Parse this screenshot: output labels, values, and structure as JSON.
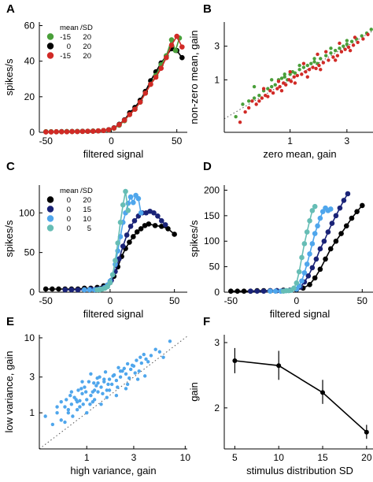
{
  "colors": {
    "green": "#4a9f3a",
    "black": "#000000",
    "red": "#d12a26",
    "navy": "#1a2377",
    "blue": "#4b42c0",
    "lightblue": "#4fa6ec",
    "teal": "#66bdb5",
    "dotted": "#555555"
  },
  "chart_data": [
    {
      "id": "A",
      "panel_letter": "A",
      "type": "line",
      "xlabel": "filtered signal",
      "ylabel": "spikes/s",
      "xlim": [
        -55,
        58
      ],
      "ylim": [
        0,
        62
      ],
      "xticks": [
        -50,
        0,
        50
      ],
      "yticks": [
        0,
        20,
        40,
        60
      ],
      "legend": {
        "placement": "top-left",
        "header_mean": "mean",
        "header_sd": "/SD",
        "rows": [
          {
            "mean": "-15",
            "sd": "20",
            "color_key": "green"
          },
          {
            "mean": "0",
            "sd": "20",
            "color_key": "black"
          },
          {
            "mean": "-15",
            "sd": "20",
            "color_key": "red"
          }
        ]
      },
      "series": [
        {
          "color_key": "black",
          "x": [
            -50,
            -46,
            -42,
            -38,
            -34,
            -30,
            -26,
            -22,
            -18,
            -14,
            -10,
            -6,
            -2,
            2,
            6,
            10,
            14,
            18,
            22,
            26,
            30,
            34,
            38,
            42,
            46,
            50,
            54
          ],
          "y": [
            0.3,
            0.3,
            0.3,
            0.4,
            0.4,
            0.5,
            0.5,
            0.6,
            0.6,
            0.7,
            0.8,
            1,
            1.5,
            2.5,
            4.5,
            7,
            11,
            14,
            18,
            23,
            29,
            34,
            39,
            43,
            47,
            46,
            42
          ]
        },
        {
          "color_key": "green",
          "x": [
            -50,
            -46,
            -42,
            -38,
            -34,
            -30,
            -26,
            -22,
            -18,
            -14,
            -10,
            -6,
            -2,
            2,
            6,
            10,
            14,
            18,
            22,
            26,
            30,
            34,
            38,
            42,
            46,
            49,
            52
          ],
          "y": [
            0.3,
            0.3,
            0.3,
            0.3,
            0.4,
            0.4,
            0.5,
            0.5,
            0.6,
            0.7,
            0.8,
            1,
            1.3,
            2.3,
            4,
            6.5,
            10,
            13,
            17,
            22,
            27,
            32,
            38,
            43,
            52,
            46,
            53
          ]
        },
        {
          "color_key": "red",
          "x": [
            -50,
            -46,
            -42,
            -38,
            -34,
            -30,
            -26,
            -22,
            -18,
            -14,
            -10,
            -6,
            -2,
            2,
            6,
            10,
            14,
            18,
            22,
            26,
            30,
            34,
            38,
            42,
            46,
            50,
            54
          ],
          "y": [
            0.2,
            0.2,
            0.3,
            0.3,
            0.3,
            0.4,
            0.4,
            0.5,
            0.6,
            0.6,
            0.8,
            1,
            1.4,
            2.4,
            4.3,
            6.8,
            10,
            13,
            17,
            22,
            27,
            31,
            36,
            42,
            49,
            54,
            48
          ]
        }
      ]
    },
    {
      "id": "B",
      "panel_letter": "B",
      "type": "scatter",
      "xlabel": "zero mean, gain",
      "ylabel": "non-zero mean, gain",
      "xscale": "log",
      "yscale": "log",
      "xlim": [
        0.28,
        5.2
      ],
      "ylim": [
        0.18,
        6.6
      ],
      "xticks": [
        1,
        3
      ],
      "yticks": [
        1,
        3
      ],
      "identity_line": true,
      "series": [
        {
          "color_key": "green",
          "x": [
            0.35,
            0.4,
            0.45,
            0.5,
            0.55,
            0.6,
            0.65,
            0.7,
            0.75,
            0.8,
            0.85,
            0.9,
            0.95,
            1.0,
            1.05,
            1.1,
            1.2,
            1.3,
            1.4,
            1.5,
            1.6,
            1.7,
            1.8,
            2.0,
            2.2,
            2.4,
            2.6,
            2.8,
            3.0,
            3.3,
            3.6,
            4.0,
            4.4,
            4.8,
            0.5,
            0.7,
            0.9,
            1.2,
            1.6,
            2.2,
            3.0
          ],
          "y": [
            0.3,
            0.45,
            0.5,
            0.55,
            0.6,
            0.7,
            0.75,
            0.8,
            0.85,
            1.0,
            1.05,
            1.1,
            1.0,
            1.2,
            1.3,
            1.25,
            1.4,
            1.5,
            1.6,
            1.7,
            1.8,
            1.7,
            2.0,
            2.2,
            2.4,
            2.6,
            2.8,
            3.0,
            3.2,
            3.5,
            3.8,
            4.2,
            4.6,
            5.2,
            0.8,
            1.0,
            1.2,
            1.6,
            2.0,
            2.8,
            3.6
          ]
        },
        {
          "color_key": "red",
          "x": [
            0.38,
            0.42,
            0.48,
            0.52,
            0.58,
            0.62,
            0.68,
            0.72,
            0.78,
            0.82,
            0.88,
            0.92,
            0.98,
            1.02,
            1.08,
            1.15,
            1.25,
            1.35,
            1.45,
            1.55,
            1.65,
            1.75,
            1.9,
            2.1,
            2.3,
            2.5,
            2.7,
            2.9,
            3.1,
            3.4,
            3.7,
            4.1,
            4.5,
            0.45,
            0.55,
            0.65,
            0.85,
            1.1,
            1.4,
            1.8,
            2.4,
            3.2,
            0.6,
            0.8,
            1.0,
            1.3,
            1.7,
            2.0,
            2.6,
            3.5
          ],
          "y": [
            0.25,
            0.35,
            0.5,
            0.45,
            0.55,
            0.6,
            0.7,
            0.65,
            0.75,
            0.8,
            0.9,
            0.85,
            1.0,
            0.95,
            1.1,
            1.15,
            1.2,
            1.3,
            1.4,
            1.5,
            1.45,
            1.6,
            1.75,
            1.9,
            2.1,
            2.2,
            2.5,
            2.7,
            2.9,
            3.1,
            3.4,
            3.8,
            4.4,
            0.4,
            0.5,
            0.58,
            0.7,
            0.9,
            1.1,
            1.4,
            1.9,
            2.6,
            0.75,
            0.95,
            1.3,
            1.7,
            2.3,
            2.5,
            3.3,
            4.0
          ]
        }
      ]
    },
    {
      "id": "C",
      "panel_letter": "C",
      "type": "line",
      "xlabel": "filtered signal",
      "ylabel": "spikes/s",
      "xlim": [
        -55,
        60
      ],
      "ylim": [
        0,
        135
      ],
      "xticks": [
        -50,
        0,
        50
      ],
      "yticks": [
        0,
        50,
        100
      ],
      "legend": {
        "placement": "top-left",
        "header_mean": "mean",
        "header_sd": "/SD",
        "rows": [
          {
            "mean": "0",
            "sd": "20",
            "color_key": "black"
          },
          {
            "mean": "0",
            "sd": "15",
            "color_key": "navy"
          },
          {
            "mean": "0",
            "sd": "10",
            "color_key": "lightblue"
          },
          {
            "mean": "0",
            "sd": "5",
            "color_key": "teal"
          }
        ]
      },
      "series": [
        {
          "color_key": "black",
          "x": [
            -50,
            -45,
            -40,
            -35,
            -30,
            -25,
            -20,
            -15,
            -10,
            -5,
            0,
            3,
            6,
            9,
            12,
            15,
            18,
            21,
            24,
            27,
            30,
            35,
            40,
            45,
            50
          ],
          "y": [
            4,
            4,
            4,
            4,
            4,
            4,
            5,
            5,
            6,
            8,
            12,
            20,
            32,
            45,
            55,
            63,
            70,
            76,
            80,
            84,
            86,
            84,
            83,
            80,
            73
          ]
        },
        {
          "color_key": "navy",
          "x": [
            -35,
            -30,
            -25,
            -20,
            -15,
            -10,
            -5,
            -2,
            1,
            4,
            7,
            10,
            13,
            16,
            19,
            22,
            25,
            28,
            31,
            34,
            37,
            40,
            43
          ],
          "y": [
            3,
            3,
            3,
            3,
            4,
            4,
            6,
            9,
            15,
            26,
            42,
            58,
            72,
            83,
            90,
            96,
            100,
            100,
            102,
            100,
            96,
            90,
            85
          ]
        },
        {
          "color_key": "lightblue",
          "x": [
            -20,
            -16,
            -12,
            -8,
            -4,
            -2,
            0,
            2,
            4,
            6,
            8,
            10,
            12,
            14,
            16,
            18,
            20,
            22,
            24
          ],
          "y": [
            3,
            3,
            3,
            4,
            6,
            9,
            14,
            22,
            35,
            52,
            70,
            88,
            100,
            112,
            120,
            113,
            122,
            118,
            100
          ]
        },
        {
          "color_key": "teal",
          "x": [
            -10,
            -8,
            -6,
            -4,
            -2,
            0,
            2,
            4,
            6,
            8,
            10,
            12,
            14
          ],
          "y": [
            3,
            3,
            4,
            5,
            7,
            12,
            22,
            40,
            62,
            88,
            110,
            127,
            103
          ]
        }
      ]
    },
    {
      "id": "D",
      "panel_letter": "D",
      "type": "line",
      "xlabel": "filtered signal",
      "ylabel": "spikes/s",
      "xlim": [
        -55,
        60
      ],
      "ylim": [
        0,
        210
      ],
      "xticks": [
        -50,
        0,
        50
      ],
      "yticks": [
        0,
        50,
        100,
        150,
        200
      ],
      "series": [
        {
          "color_key": "black",
          "x": [
            -50,
            -45,
            -40,
            -35,
            -30,
            -25,
            -20,
            -15,
            -10,
            -5,
            0,
            5,
            10,
            14,
            18,
            22,
            26,
            30,
            34,
            38,
            42,
            46,
            50
          ],
          "y": [
            2,
            2,
            2,
            2,
            3,
            3,
            3,
            3,
            4,
            4,
            5,
            8,
            15,
            28,
            45,
            65,
            85,
            100,
            115,
            130,
            145,
            158,
            170
          ]
        },
        {
          "color_key": "navy",
          "x": [
            -35,
            -30,
            -25,
            -20,
            -15,
            -10,
            -5,
            0,
            3,
            6,
            9,
            12,
            15,
            18,
            21,
            24,
            27,
            30,
            33,
            36,
            39
          ],
          "y": [
            2,
            2,
            2,
            3,
            3,
            3,
            4,
            6,
            10,
            20,
            32,
            48,
            65,
            85,
            100,
            118,
            135,
            150,
            165,
            180,
            193
          ]
        },
        {
          "color_key": "lightblue",
          "x": [
            -20,
            -16,
            -12,
            -8,
            -4,
            0,
            2,
            4,
            6,
            8,
            10,
            12,
            14,
            16,
            18,
            20,
            22,
            24,
            26
          ],
          "y": [
            2,
            2,
            2,
            3,
            4,
            6,
            12,
            22,
            38,
            55,
            75,
            95,
            115,
            130,
            145,
            158,
            165,
            160,
            163
          ]
        },
        {
          "color_key": "teal",
          "x": [
            -10,
            -8,
            -6,
            -4,
            -2,
            0,
            2,
            4,
            6,
            8,
            10,
            12,
            14
          ],
          "y": [
            2,
            3,
            3,
            4,
            8,
            18,
            40,
            68,
            95,
            118,
            140,
            160,
            168
          ]
        }
      ]
    },
    {
      "id": "E",
      "panel_letter": "E",
      "type": "scatter",
      "xlabel": "high variance, gain",
      "ylabel": "low variance, gain",
      "xscale": "log",
      "yscale": "log",
      "xlim": [
        0.33,
        10.5
      ],
      "ylim": [
        0.33,
        11
      ],
      "xticks": [
        1,
        3,
        10
      ],
      "yticks": [
        1,
        3,
        10
      ],
      "identity_line": true,
      "series": [
        {
          "color_key": "lightblue",
          "x": [
            0.38,
            0.45,
            0.5,
            0.55,
            0.6,
            0.62,
            0.65,
            0.7,
            0.72,
            0.75,
            0.8,
            0.82,
            0.85,
            0.9,
            0.92,
            0.95,
            1.0,
            1.05,
            1.1,
            1.15,
            1.2,
            1.25,
            1.3,
            1.35,
            1.4,
            1.5,
            1.55,
            1.6,
            1.7,
            1.8,
            1.9,
            2.0,
            2.1,
            2.2,
            2.3,
            2.5,
            2.6,
            2.8,
            3.0,
            3.2,
            3.4,
            3.6,
            3.8,
            4.0,
            4.5,
            5.0,
            5.5,
            6.0,
            7.0,
            0.55,
            0.68,
            0.78,
            0.88,
            0.98,
            1.08,
            1.18,
            1.28,
            1.45,
            1.65,
            1.85,
            2.05,
            2.4,
            2.7,
            3.1,
            3.5,
            4.2,
            0.6,
            0.8,
            1.0,
            1.2,
            1.4,
            1.7,
            2.0,
            2.6,
            3.3,
            0.7,
            0.9,
            1.1,
            1.3,
            1.6,
            2.2,
            2.9,
            0.5,
            0.65,
            0.85,
            1.15,
            1.5,
            2.5,
            3.9
          ],
          "y": [
            0.9,
            0.7,
            1.0,
            0.8,
            1.2,
            1.5,
            1.1,
            1.3,
            0.9,
            1.6,
            1.4,
            2.0,
            1.2,
            1.8,
            1.3,
            2.2,
            1.5,
            2.6,
            1.7,
            1.4,
            2.0,
            2.3,
            1.9,
            3.0,
            2.2,
            2.6,
            3.5,
            2.0,
            2.8,
            2.4,
            3.2,
            2.7,
            4.0,
            3.0,
            3.6,
            3.3,
            4.5,
            3.8,
            4.2,
            5.0,
            3.6,
            4.6,
            6.0,
            5.2,
            5.8,
            7.0,
            6.5,
            5.5,
            9.0,
            1.4,
            1.7,
            1.5,
            2.1,
            1.9,
            1.3,
            2.5,
            2.9,
            1.8,
            2.4,
            3.1,
            2.2,
            3.9,
            2.9,
            3.4,
            5.5,
            4.8,
            0.75,
            1.1,
            1.0,
            1.5,
            1.3,
            2.0,
            1.7,
            2.4,
            2.8,
            1.9,
            2.6,
            3.3,
            2.5,
            1.6,
            3.6,
            4.3,
            1.2,
            1.0,
            1.45,
            1.9,
            2.8,
            2.1,
            3.1
          ]
        }
      ]
    },
    {
      "id": "F",
      "panel_letter": "F",
      "type": "line",
      "xlabel": "stimulus distribution SD",
      "ylabel": "gain",
      "yscale": "log",
      "xlim": [
        3.8,
        21
      ],
      "ylim": [
        1.55,
        3.15
      ],
      "xticks": [
        5,
        10,
        15,
        20
      ],
      "yticks": [
        2,
        3
      ],
      "series": [
        {
          "color_key": "black",
          "x": [
            5,
            10,
            15,
            20
          ],
          "y": [
            2.68,
            2.6,
            2.2,
            1.72
          ],
          "err_low": [
            2.48,
            2.38,
            2.05,
            1.65
          ],
          "err_high": [
            2.9,
            2.85,
            2.38,
            1.8
          ]
        }
      ]
    }
  ]
}
